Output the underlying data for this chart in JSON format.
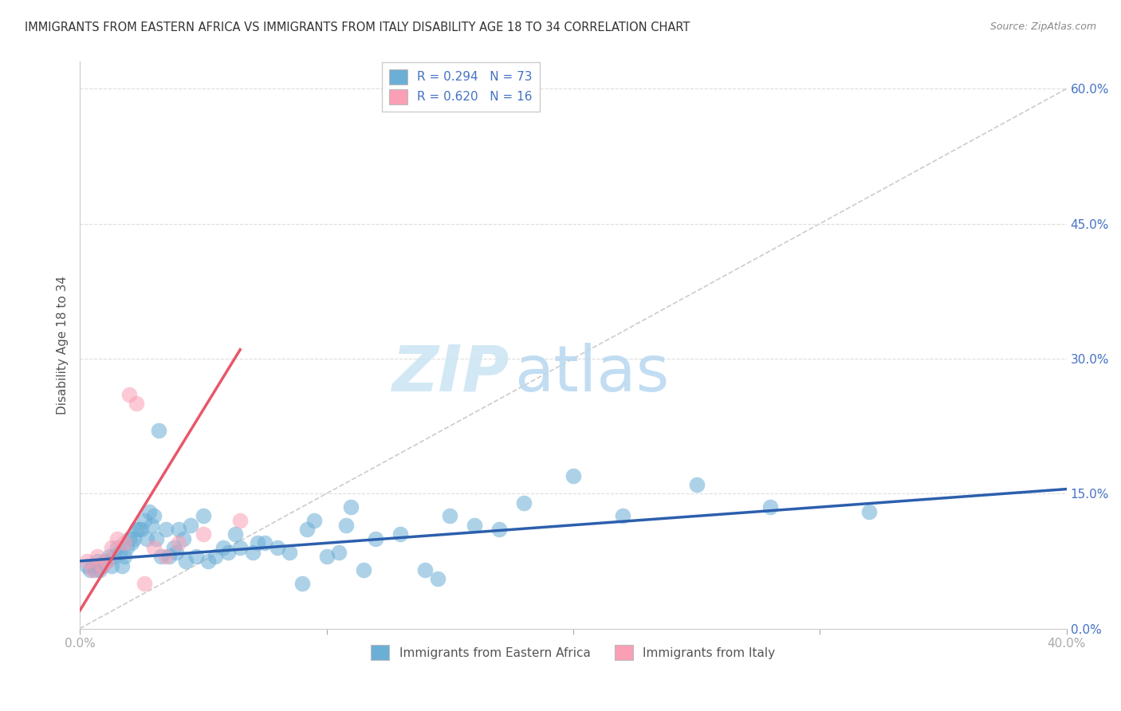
{
  "title": "IMMIGRANTS FROM EASTERN AFRICA VS IMMIGRANTS FROM ITALY DISABILITY AGE 18 TO 34 CORRELATION CHART",
  "source": "Source: ZipAtlas.com",
  "ylabel": "Disability Age 18 to 34",
  "ytick_vals": [
    0.0,
    15.0,
    30.0,
    45.0,
    60.0
  ],
  "xlim": [
    0.0,
    40.0
  ],
  "ylim": [
    0.0,
    63.0
  ],
  "watermark_zip": "ZIP",
  "watermark_atlas": "atlas",
  "color_blue": "#6baed6",
  "color_pink": "#fa9fb5",
  "line_color_blue": "#2c5fad",
  "line_color_pink": "#e8576a",
  "diag_color": "#cccccc",
  "blue_scatter_x": [
    0.5,
    0.8,
    1.0,
    1.2,
    1.3,
    1.5,
    1.6,
    1.7,
    1.8,
    1.9,
    2.0,
    2.1,
    2.2,
    2.3,
    2.5,
    2.6,
    2.8,
    3.0,
    3.2,
    3.5,
    3.8,
    4.0,
    4.2,
    4.5,
    5.0,
    5.5,
    6.0,
    6.5,
    7.0,
    7.5,
    8.0,
    9.0,
    9.5,
    10.0,
    10.5,
    11.0,
    12.0,
    13.0,
    14.0,
    15.0,
    16.0,
    18.0,
    20.0,
    22.0,
    25.0,
    28.0,
    32.0,
    0.3,
    0.4,
    0.6,
    0.7,
    0.9,
    1.1,
    1.4,
    2.4,
    2.7,
    2.9,
    3.1,
    3.3,
    3.6,
    3.9,
    4.3,
    4.7,
    5.2,
    5.8,
    6.3,
    7.2,
    8.5,
    9.2,
    10.8,
    11.5,
    14.5,
    17.0
  ],
  "blue_scatter_y": [
    7.0,
    6.5,
    7.5,
    8.0,
    7.0,
    9.0,
    8.5,
    7.0,
    8.0,
    9.0,
    10.0,
    9.5,
    10.0,
    11.0,
    11.0,
    12.0,
    13.0,
    12.5,
    22.0,
    11.0,
    9.0,
    11.0,
    10.0,
    11.5,
    12.5,
    8.0,
    8.5,
    9.0,
    8.5,
    9.5,
    9.0,
    5.0,
    12.0,
    8.0,
    8.5,
    13.5,
    10.0,
    10.5,
    6.5,
    12.5,
    11.5,
    14.0,
    17.0,
    12.5,
    16.0,
    13.5,
    13.0,
    7.0,
    6.5,
    6.5,
    7.5,
    7.0,
    7.5,
    8.0,
    11.0,
    10.0,
    11.5,
    10.0,
    8.0,
    8.0,
    8.5,
    7.5,
    8.0,
    7.5,
    9.0,
    10.5,
    9.5,
    8.5,
    11.0,
    11.5,
    6.5,
    5.5,
    11.0
  ],
  "pink_scatter_x": [
    0.3,
    0.5,
    0.7,
    0.9,
    1.1,
    1.3,
    1.5,
    1.8,
    2.0,
    2.3,
    2.6,
    3.0,
    3.5,
    4.0,
    5.0,
    6.5
  ],
  "pink_scatter_y": [
    7.5,
    6.5,
    8.0,
    7.0,
    7.5,
    9.0,
    10.0,
    9.5,
    26.0,
    25.0,
    5.0,
    9.0,
    8.0,
    9.5,
    10.5,
    12.0
  ],
  "blue_trendline_x": [
    0.0,
    40.0
  ],
  "blue_trendline_y": [
    7.5,
    15.5
  ],
  "pink_trendline_x": [
    0.0,
    6.5
  ],
  "pink_trendline_y": [
    2.0,
    31.0
  ],
  "diag_line_x": [
    0.0,
    40.0
  ],
  "diag_line_y": [
    0.0,
    60.0
  ],
  "background_color": "#ffffff",
  "grid_color": "#dddddd",
  "legend_label_1": "R = 0.294   N = 73",
  "legend_label_2": "R = 0.620   N = 16",
  "bottom_label_1": "Immigrants from Eastern Africa",
  "bottom_label_2": "Immigrants from Italy"
}
